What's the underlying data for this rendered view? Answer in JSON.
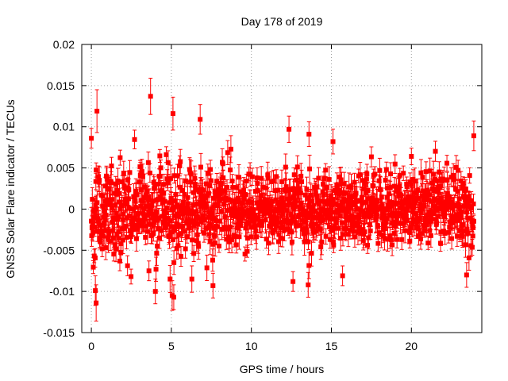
{
  "chart_data": {
    "type": "scatter",
    "title": "Day 178 of 2019",
    "xlabel": "GPS time / hours",
    "ylabel": "GNSS Solar Flare indicator / TECUs",
    "xlim": [
      -0.6,
      24.4
    ],
    "ylim": [
      -0.015,
      0.02
    ],
    "x_ticks": [
      0,
      5,
      10,
      15,
      20
    ],
    "x_tick_labels": [
      "0",
      "5",
      "10",
      "15",
      "20"
    ],
    "y_ticks": [
      -0.015,
      -0.01,
      -0.005,
      0,
      0.005,
      0.01,
      0.015,
      0.02
    ],
    "y_tick_labels": [
      "-0.015",
      "-0.01",
      "-0.005",
      "0",
      "0.005",
      "0.01",
      "0.015",
      "0.02"
    ],
    "grid": true,
    "series_color": "#ff0000",
    "marker": "square",
    "error_bars": true,
    "x_range": [
      0,
      23.9
    ],
    "typical_noise_std": 0.0028,
    "typical_error": 0.0012,
    "series": [
      {
        "name": "solar flare indicator",
        "notable_points": [
          {
            "x": 0.0,
            "y": 0.0086,
            "err": 0.0012
          },
          {
            "x": 0.35,
            "y": 0.0119,
            "err": 0.0026
          },
          {
            "x": 0.3,
            "y": -0.0114,
            "err": 0.0022
          },
          {
            "x": 0.25,
            "y": -0.0099,
            "err": 0.0018
          },
          {
            "x": 3.7,
            "y": 0.0137,
            "err": 0.0022
          },
          {
            "x": 4.0,
            "y": -0.01,
            "err": 0.0015
          },
          {
            "x": 3.6,
            "y": -0.0075,
            "err": 0.0012
          },
          {
            "x": 5.1,
            "y": 0.0116,
            "err": 0.002
          },
          {
            "x": 5.05,
            "y": -0.0105,
            "err": 0.0018
          },
          {
            "x": 5.15,
            "y": -0.0107,
            "err": 0.0015
          },
          {
            "x": 6.8,
            "y": 0.0109,
            "err": 0.0018
          },
          {
            "x": 7.6,
            "y": -0.0093,
            "err": 0.0015
          },
          {
            "x": 12.35,
            "y": 0.0097,
            "err": 0.0016
          },
          {
            "x": 12.6,
            "y": -0.0088,
            "err": 0.0012
          },
          {
            "x": 13.55,
            "y": -0.0092,
            "err": 0.0015
          },
          {
            "x": 13.6,
            "y": 0.0091,
            "err": 0.0015
          },
          {
            "x": 15.1,
            "y": 0.0082,
            "err": 0.0015
          },
          {
            "x": 15.7,
            "y": -0.0081,
            "err": 0.0012
          },
          {
            "x": 20.0,
            "y": 0.0064,
            "err": 0.001
          },
          {
            "x": 23.45,
            "y": -0.008,
            "err": 0.0015
          },
          {
            "x": 23.9,
            "y": 0.0089,
            "err": 0.0018
          }
        ]
      }
    ]
  }
}
